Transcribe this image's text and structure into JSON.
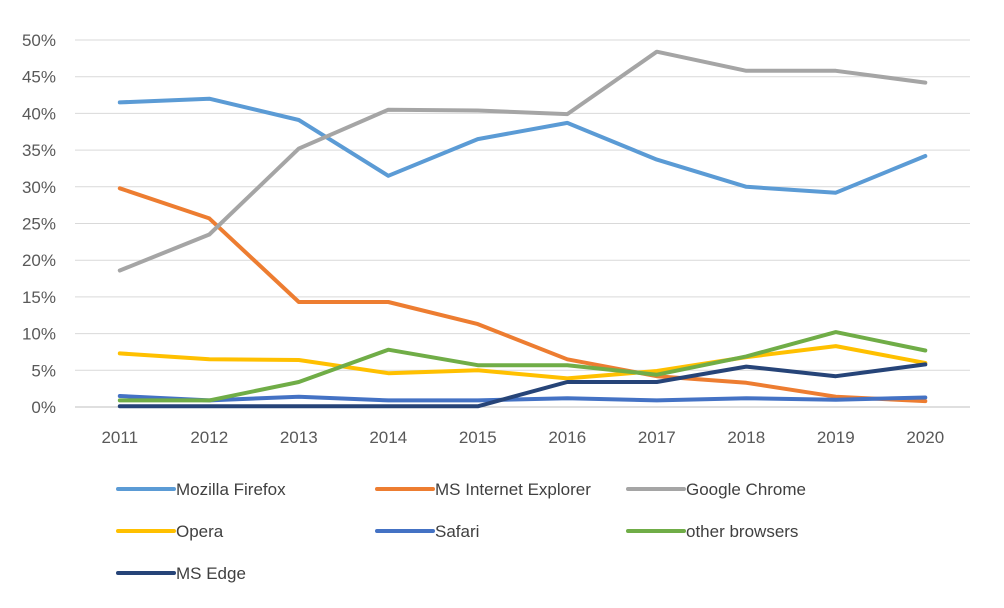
{
  "chart_data": {
    "type": "line",
    "title": "",
    "xlabel": "",
    "ylabel": "",
    "x": [
      "2011",
      "2012",
      "2013",
      "2014",
      "2015",
      "2016",
      "2017",
      "2018",
      "2019",
      "2020"
    ],
    "ylim": [
      0,
      50
    ],
    "yticks": [
      0,
      5,
      10,
      15,
      20,
      25,
      30,
      35,
      40,
      45,
      50
    ],
    "ytick_labels": [
      "0%",
      "5%",
      "10%",
      "15%",
      "20%",
      "25%",
      "30%",
      "35%",
      "40%",
      "45%",
      "50%"
    ],
    "grid": true,
    "legend_position": "bottom",
    "series": [
      {
        "name": "Mozilla Firefox",
        "color": "#5B9BD5",
        "values": [
          41.5,
          42.0,
          39.1,
          31.5,
          36.5,
          38.7,
          33.7,
          30.0,
          29.2,
          34.2
        ]
      },
      {
        "name": "MS Internet Explorer",
        "color": "#ED7D31",
        "values": [
          29.8,
          25.7,
          14.3,
          14.3,
          11.3,
          6.5,
          4.2,
          3.3,
          1.4,
          0.8
        ]
      },
      {
        "name": "Google Chrome",
        "color": "#A5A5A5",
        "values": [
          18.6,
          23.5,
          35.2,
          40.5,
          40.4,
          39.9,
          48.4,
          45.8,
          45.8,
          44.2
        ]
      },
      {
        "name": "Opera",
        "color": "#FFC000",
        "values": [
          7.3,
          6.5,
          6.4,
          4.6,
          5.0,
          3.9,
          4.9,
          6.8,
          8.3,
          6.0
        ]
      },
      {
        "name": "Safari",
        "color": "#4472C4",
        "values": [
          1.5,
          0.9,
          1.4,
          0.9,
          0.9,
          1.2,
          0.9,
          1.2,
          1.0,
          1.3
        ]
      },
      {
        "name": "other browsers",
        "color": "#70AD47",
        "values": [
          0.9,
          0.9,
          3.4,
          7.8,
          5.7,
          5.7,
          4.4,
          6.9,
          10.2,
          7.7
        ]
      },
      {
        "name": "MS Edge",
        "color": "#264478",
        "values": [
          0.1,
          0.1,
          0.1,
          0.1,
          0.1,
          3.4,
          3.4,
          5.5,
          4.2,
          5.8
        ]
      }
    ]
  }
}
